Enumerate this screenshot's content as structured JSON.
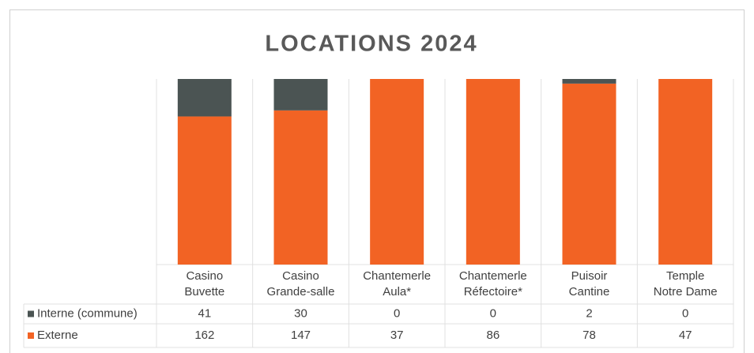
{
  "chart_data": {
    "type": "bar",
    "stacked": "percent",
    "title": "LOCATIONS 2024",
    "categories": [
      [
        "Casino",
        "Buvette"
      ],
      [
        "Casino",
        "Grande-salle"
      ],
      [
        "Chantemerle",
        "Aula*"
      ],
      [
        "Chantemerle",
        "Réfectoire*"
      ],
      [
        "Puisoir",
        "Cantine"
      ],
      [
        "Temple",
        "Notre Dame"
      ]
    ],
    "series": [
      {
        "name": "Interne (commune)",
        "color": "#4b5453",
        "values": [
          41,
          30,
          0,
          0,
          2,
          0
        ]
      },
      {
        "name": "Externe",
        "color": "#f26324",
        "values": [
          162,
          147,
          37,
          86,
          78,
          47
        ]
      }
    ]
  }
}
